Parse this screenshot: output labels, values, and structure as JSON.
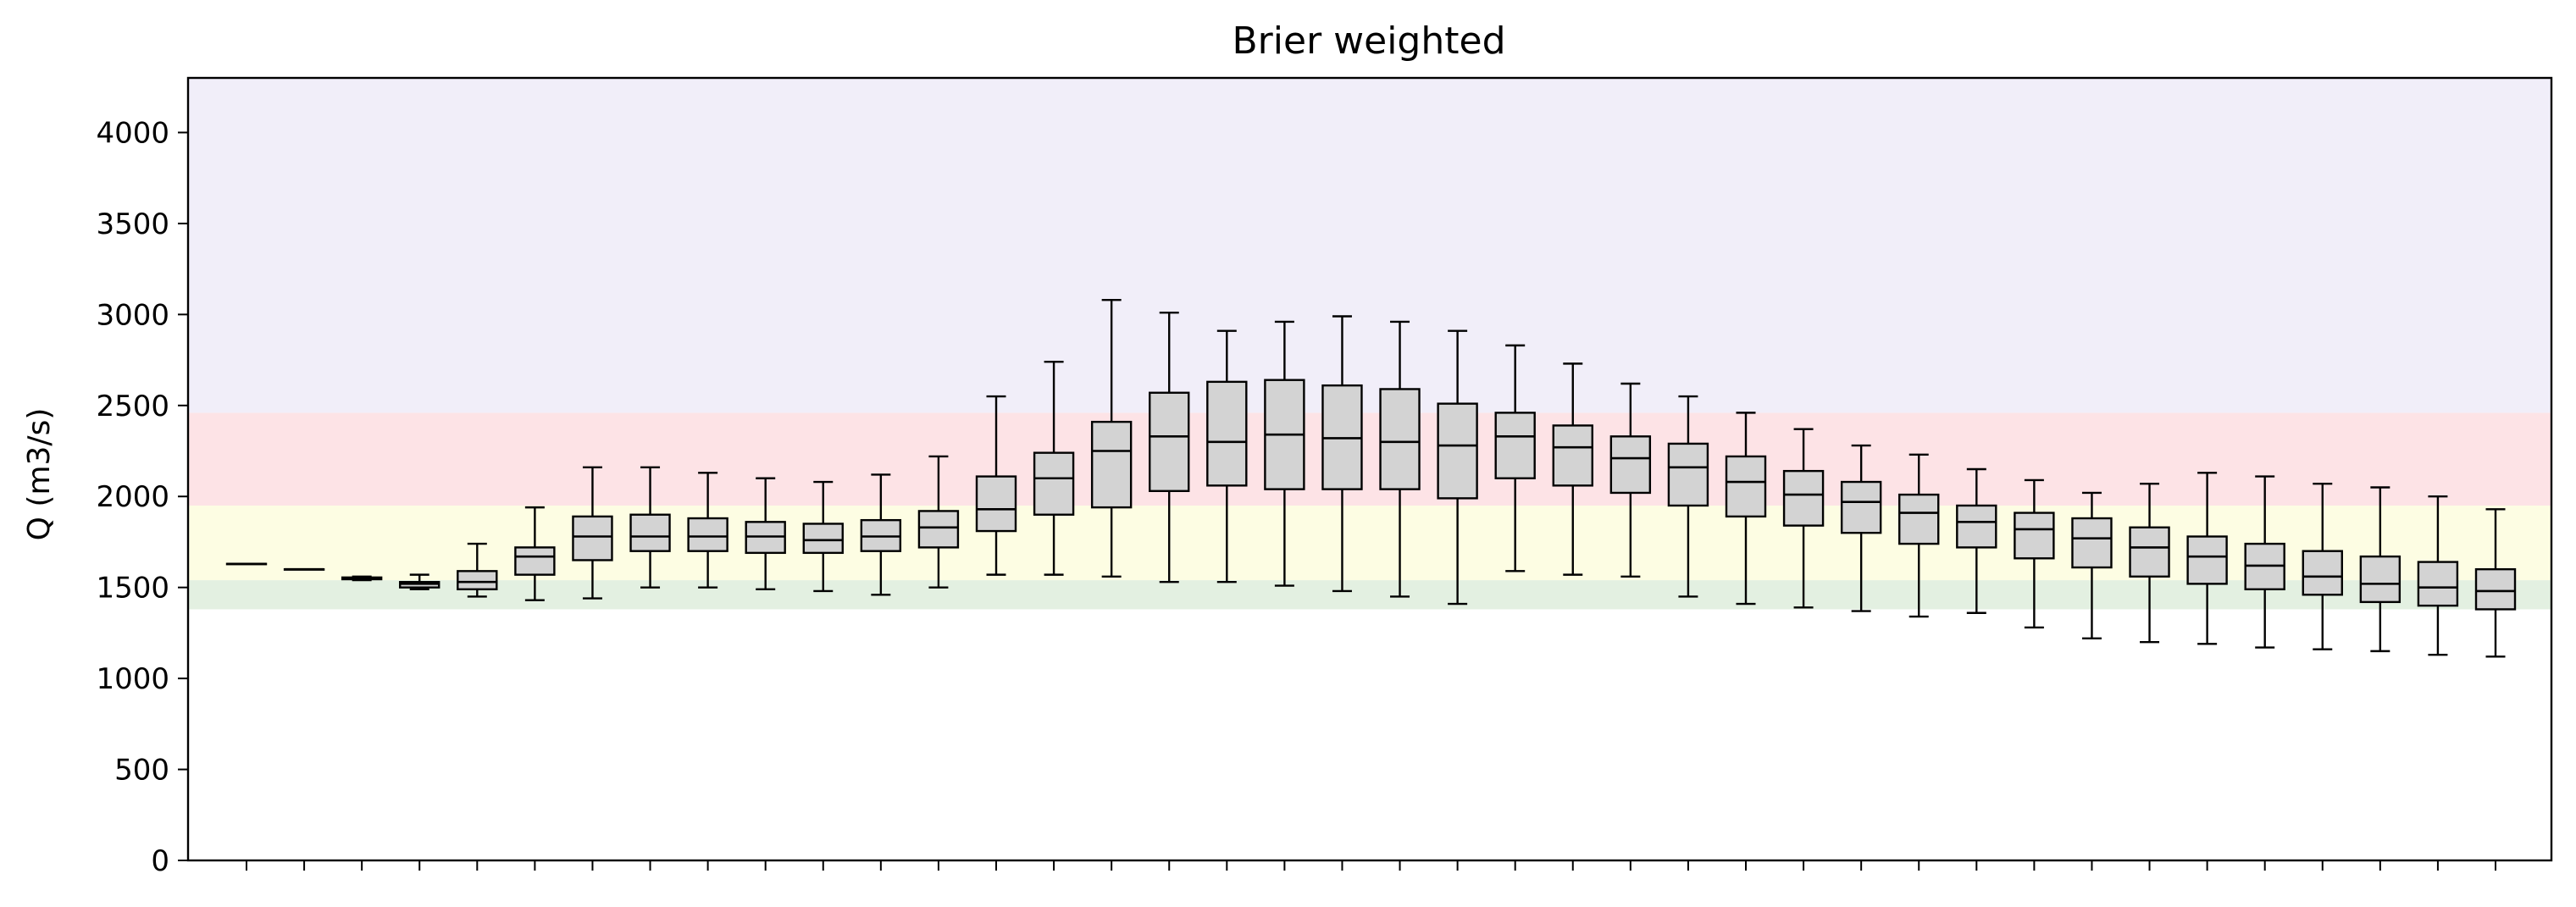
{
  "chart_data": {
    "type": "box",
    "title": "Brier weighted",
    "xlabel": "",
    "ylabel": "Q (m3/s)",
    "ylim": [
      0,
      4300
    ],
    "yticks": [
      0,
      500,
      1000,
      1500,
      2000,
      2500,
      3000,
      3500,
      4000
    ],
    "x_tick_labels_shown": false,
    "threshold_bands": [
      {
        "y0": 1380,
        "y1": 1540,
        "color": "#e3f0e1"
      },
      {
        "y0": 1540,
        "y1": 1950,
        "color": "#fdfde3"
      },
      {
        "y0": 1950,
        "y1": 2460,
        "color": "#fde3e6"
      },
      {
        "y0": 2460,
        "y1": 4300,
        "color": "#f1eef9"
      }
    ],
    "box_fill": "#d3d3d3",
    "boxes": [
      {
        "whislo": 1630,
        "q1": 1630,
        "med": 1630,
        "q3": 1630,
        "whishi": 1630
      },
      {
        "whislo": 1600,
        "q1": 1600,
        "med": 1600,
        "q3": 1600,
        "whishi": 1600
      },
      {
        "whislo": 1540,
        "q1": 1545,
        "med": 1550,
        "q3": 1555,
        "whishi": 1560
      },
      {
        "whislo": 1490,
        "q1": 1500,
        "med": 1520,
        "q3": 1530,
        "whishi": 1570
      },
      {
        "whislo": 1450,
        "q1": 1490,
        "med": 1530,
        "q3": 1590,
        "whishi": 1740
      },
      {
        "whislo": 1430,
        "q1": 1570,
        "med": 1670,
        "q3": 1720,
        "whishi": 1940
      },
      {
        "whislo": 1440,
        "q1": 1650,
        "med": 1780,
        "q3": 1890,
        "whishi": 2160
      },
      {
        "whislo": 1500,
        "q1": 1700,
        "med": 1780,
        "q3": 1900,
        "whishi": 2160
      },
      {
        "whislo": 1500,
        "q1": 1700,
        "med": 1780,
        "q3": 1880,
        "whishi": 2130
      },
      {
        "whislo": 1490,
        "q1": 1690,
        "med": 1780,
        "q3": 1860,
        "whishi": 2100
      },
      {
        "whislo": 1480,
        "q1": 1690,
        "med": 1760,
        "q3": 1850,
        "whishi": 2080
      },
      {
        "whislo": 1460,
        "q1": 1700,
        "med": 1780,
        "q3": 1870,
        "whishi": 2120
      },
      {
        "whislo": 1500,
        "q1": 1720,
        "med": 1830,
        "q3": 1920,
        "whishi": 2220
      },
      {
        "whislo": 1570,
        "q1": 1810,
        "med": 1930,
        "q3": 2110,
        "whishi": 2550
      },
      {
        "whislo": 1570,
        "q1": 1900,
        "med": 2100,
        "q3": 2240,
        "whishi": 2740
      },
      {
        "whislo": 1560,
        "q1": 1940,
        "med": 2250,
        "q3": 2410,
        "whishi": 3080
      },
      {
        "whislo": 1530,
        "q1": 2030,
        "med": 2330,
        "q3": 2570,
        "whishi": 3010
      },
      {
        "whislo": 1530,
        "q1": 2060,
        "med": 2300,
        "q3": 2630,
        "whishi": 2910
      },
      {
        "whislo": 1510,
        "q1": 2040,
        "med": 2340,
        "q3": 2640,
        "whishi": 2960
      },
      {
        "whislo": 1480,
        "q1": 2040,
        "med": 2320,
        "q3": 2610,
        "whishi": 2990
      },
      {
        "whislo": 1450,
        "q1": 2040,
        "med": 2300,
        "q3": 2590,
        "whishi": 2960
      },
      {
        "whislo": 1410,
        "q1": 1990,
        "med": 2280,
        "q3": 2510,
        "whishi": 2910
      },
      {
        "whislo": 1590,
        "q1": 2100,
        "med": 2330,
        "q3": 2460,
        "whishi": 2830
      },
      {
        "whislo": 1570,
        "q1": 2060,
        "med": 2270,
        "q3": 2390,
        "whishi": 2730
      },
      {
        "whislo": 1560,
        "q1": 2020,
        "med": 2210,
        "q3": 2330,
        "whishi": 2620
      },
      {
        "whislo": 1450,
        "q1": 1950,
        "med": 2160,
        "q3": 2290,
        "whishi": 2550
      },
      {
        "whislo": 1410,
        "q1": 1890,
        "med": 2080,
        "q3": 2220,
        "whishi": 2460
      },
      {
        "whislo": 1390,
        "q1": 1840,
        "med": 2010,
        "q3": 2140,
        "whishi": 2370
      },
      {
        "whislo": 1370,
        "q1": 1800,
        "med": 1970,
        "q3": 2080,
        "whishi": 2280
      },
      {
        "whislo": 1340,
        "q1": 1740,
        "med": 1910,
        "q3": 2010,
        "whishi": 2230
      },
      {
        "whislo": 1360,
        "q1": 1720,
        "med": 1860,
        "q3": 1950,
        "whishi": 2150
      },
      {
        "whislo": 1280,
        "q1": 1660,
        "med": 1820,
        "q3": 1910,
        "whishi": 2090
      },
      {
        "whislo": 1220,
        "q1": 1610,
        "med": 1770,
        "q3": 1880,
        "whishi": 2020
      },
      {
        "whislo": 1200,
        "q1": 1560,
        "med": 1720,
        "q3": 1830,
        "whishi": 2070
      },
      {
        "whislo": 1190,
        "q1": 1520,
        "med": 1670,
        "q3": 1780,
        "whishi": 2130
      },
      {
        "whislo": 1170,
        "q1": 1490,
        "med": 1620,
        "q3": 1740,
        "whishi": 2110
      },
      {
        "whislo": 1160,
        "q1": 1460,
        "med": 1560,
        "q3": 1700,
        "whishi": 2070
      },
      {
        "whislo": 1150,
        "q1": 1420,
        "med": 1520,
        "q3": 1670,
        "whishi": 2050
      },
      {
        "whislo": 1130,
        "q1": 1400,
        "med": 1500,
        "q3": 1640,
        "whishi": 2000
      },
      {
        "whislo": 1120,
        "q1": 1380,
        "med": 1480,
        "q3": 1600,
        "whishi": 1930
      }
    ]
  }
}
